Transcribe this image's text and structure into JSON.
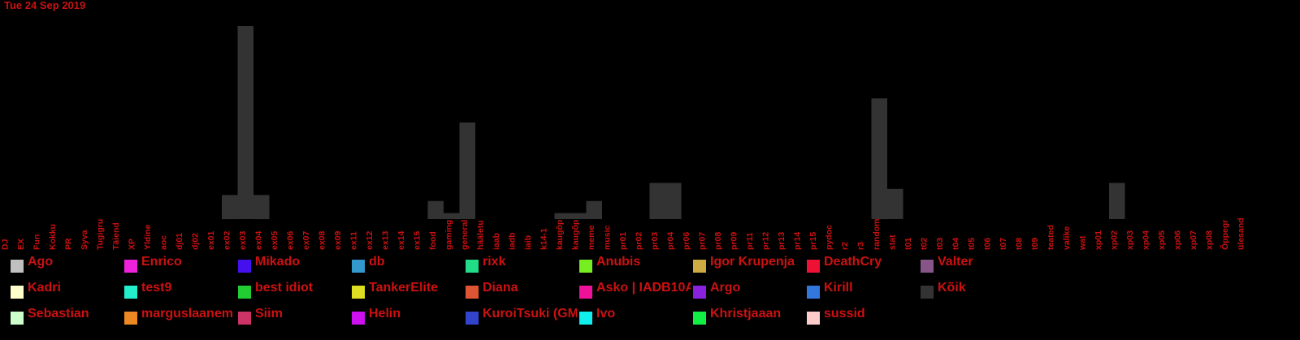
{
  "header": {
    "date": "Tue 24 Sep 2019"
  },
  "chart_data": {
    "type": "bar",
    "stacked": true,
    "title": "",
    "xlabel": "",
    "ylabel": "",
    "categories": [
      "DJ",
      "EX",
      "Fun",
      "Kokku",
      "PR",
      "Syva",
      "Tugigru",
      "Täiend",
      "XP",
      "Yldine",
      "aoc",
      "dj01",
      "dj02",
      "ex01",
      "ex02",
      "ex03",
      "ex04",
      "ex05",
      "ex06",
      "ex07",
      "ex08",
      "ex09",
      "ex11",
      "ex12",
      "ex13",
      "ex14",
      "ex15",
      "food",
      "gaming",
      "general",
      "hääletu",
      "iaab",
      "iadb",
      "iaib",
      "k14-1",
      "kaugõp",
      "kaugõp",
      "meme",
      "music",
      "pr01",
      "pr02",
      "pr03",
      "pr04",
      "pr06",
      "pr07",
      "pr08",
      "pr09",
      "pr11",
      "pr12",
      "pr13",
      "pr14",
      "pr15",
      "pydoc",
      "r2",
      "r3",
      "random",
      "stat",
      "t01",
      "t02",
      "t03",
      "t04",
      "t05",
      "t06",
      "t07",
      "t08",
      "t09",
      "teated",
      "valike",
      "wat",
      "xp01",
      "xp02",
      "xp03",
      "xp04",
      "xp05",
      "xp06",
      "xp07",
      "xp08",
      "Õppegr",
      "ülesand"
    ],
    "series": [
      {
        "name": "Kõik",
        "color": "#333333",
        "values": [
          0,
          0,
          0,
          0,
          0,
          0,
          0,
          0,
          0,
          0,
          0,
          0,
          0,
          0,
          4,
          32,
          4,
          0,
          0,
          0,
          0,
          0,
          0,
          0,
          0,
          0,
          0,
          3,
          1,
          16,
          0,
          0,
          0,
          0,
          0,
          1,
          1,
          3,
          0,
          0,
          0,
          6,
          6,
          0,
          0,
          0,
          0,
          0,
          0,
          0,
          0,
          0,
          0,
          0,
          0,
          20,
          5,
          0,
          0,
          0,
          0,
          0,
          0,
          0,
          0,
          0,
          0,
          0,
          0,
          0,
          6,
          0,
          0,
          0,
          0,
          0,
          0,
          0,
          0
        ]
      },
      {
        "name": "Ago",
        "color": "#c0c0c0",
        "values": [
          0,
          0,
          0,
          0,
          0,
          0,
          0,
          0,
          0,
          0,
          0,
          0,
          0,
          0,
          0,
          0,
          0,
          0,
          0,
          0,
          0,
          0,
          0,
          0,
          0,
          0,
          0,
          0,
          0,
          0,
          0,
          0,
          0,
          0,
          0,
          0,
          0,
          0,
          0,
          0,
          0,
          0,
          0,
          0,
          0,
          0,
          0,
          0,
          0,
          0,
          0,
          0,
          0,
          0,
          0,
          0,
          0,
          0,
          0,
          0,
          0,
          0,
          0,
          0,
          0,
          0,
          0,
          0,
          0,
          0,
          0,
          0,
          0,
          0,
          0,
          0,
          0,
          0,
          0
        ]
      }
    ],
    "ylim": [
      0,
      32
    ],
    "legend": {
      "placement": "bottom",
      "columns": 9
    },
    "legend_entries": [
      {
        "name": "Ago",
        "color": "#c0c0c0"
      },
      {
        "name": "Enrico",
        "color": "#ee22dd"
      },
      {
        "name": "Mikado",
        "color": "#4411ee"
      },
      {
        "name": "db",
        "color": "#3399cc"
      },
      {
        "name": "rixk",
        "color": "#22dd88"
      },
      {
        "name": "Anubis",
        "color": "#77ee22"
      },
      {
        "name": "Igor Krupenja",
        "color": "#ccaa44"
      },
      {
        "name": "DeathCry",
        "color": "#ee1133"
      },
      {
        "name": "Valter",
        "color": "#885588"
      },
      {
        "name": "Kadri",
        "color": "#ffffcc"
      },
      {
        "name": "test9",
        "color": "#22eecc"
      },
      {
        "name": "best idiot",
        "color": "#22cc33"
      },
      {
        "name": "TankerElite",
        "color": "#dddd22"
      },
      {
        "name": "Diana",
        "color": "#dd5533"
      },
      {
        "name": "Asko | IADB10A",
        "color": "#ee1199"
      },
      {
        "name": "Argo",
        "color": "#8822dd"
      },
      {
        "name": "Kirill",
        "color": "#3377dd"
      },
      {
        "name": "Kõik",
        "color": "#333333"
      },
      {
        "name": "Sebastian",
        "color": "#ccffcc"
      },
      {
        "name": "marguslaanem",
        "color": "#ee8822"
      },
      {
        "name": "Siim",
        "color": "#cc3366"
      },
      {
        "name": "Helin",
        "color": "#cc11ee"
      },
      {
        "name": "KuroiTsuki (GM",
        "color": "#3344cc"
      },
      {
        "name": "Ivo",
        "color": "#11eeee"
      },
      {
        "name": "Khristjaaan",
        "color": "#11ee44"
      },
      {
        "name": "sussid",
        "color": "#ffcccc"
      }
    ]
  }
}
